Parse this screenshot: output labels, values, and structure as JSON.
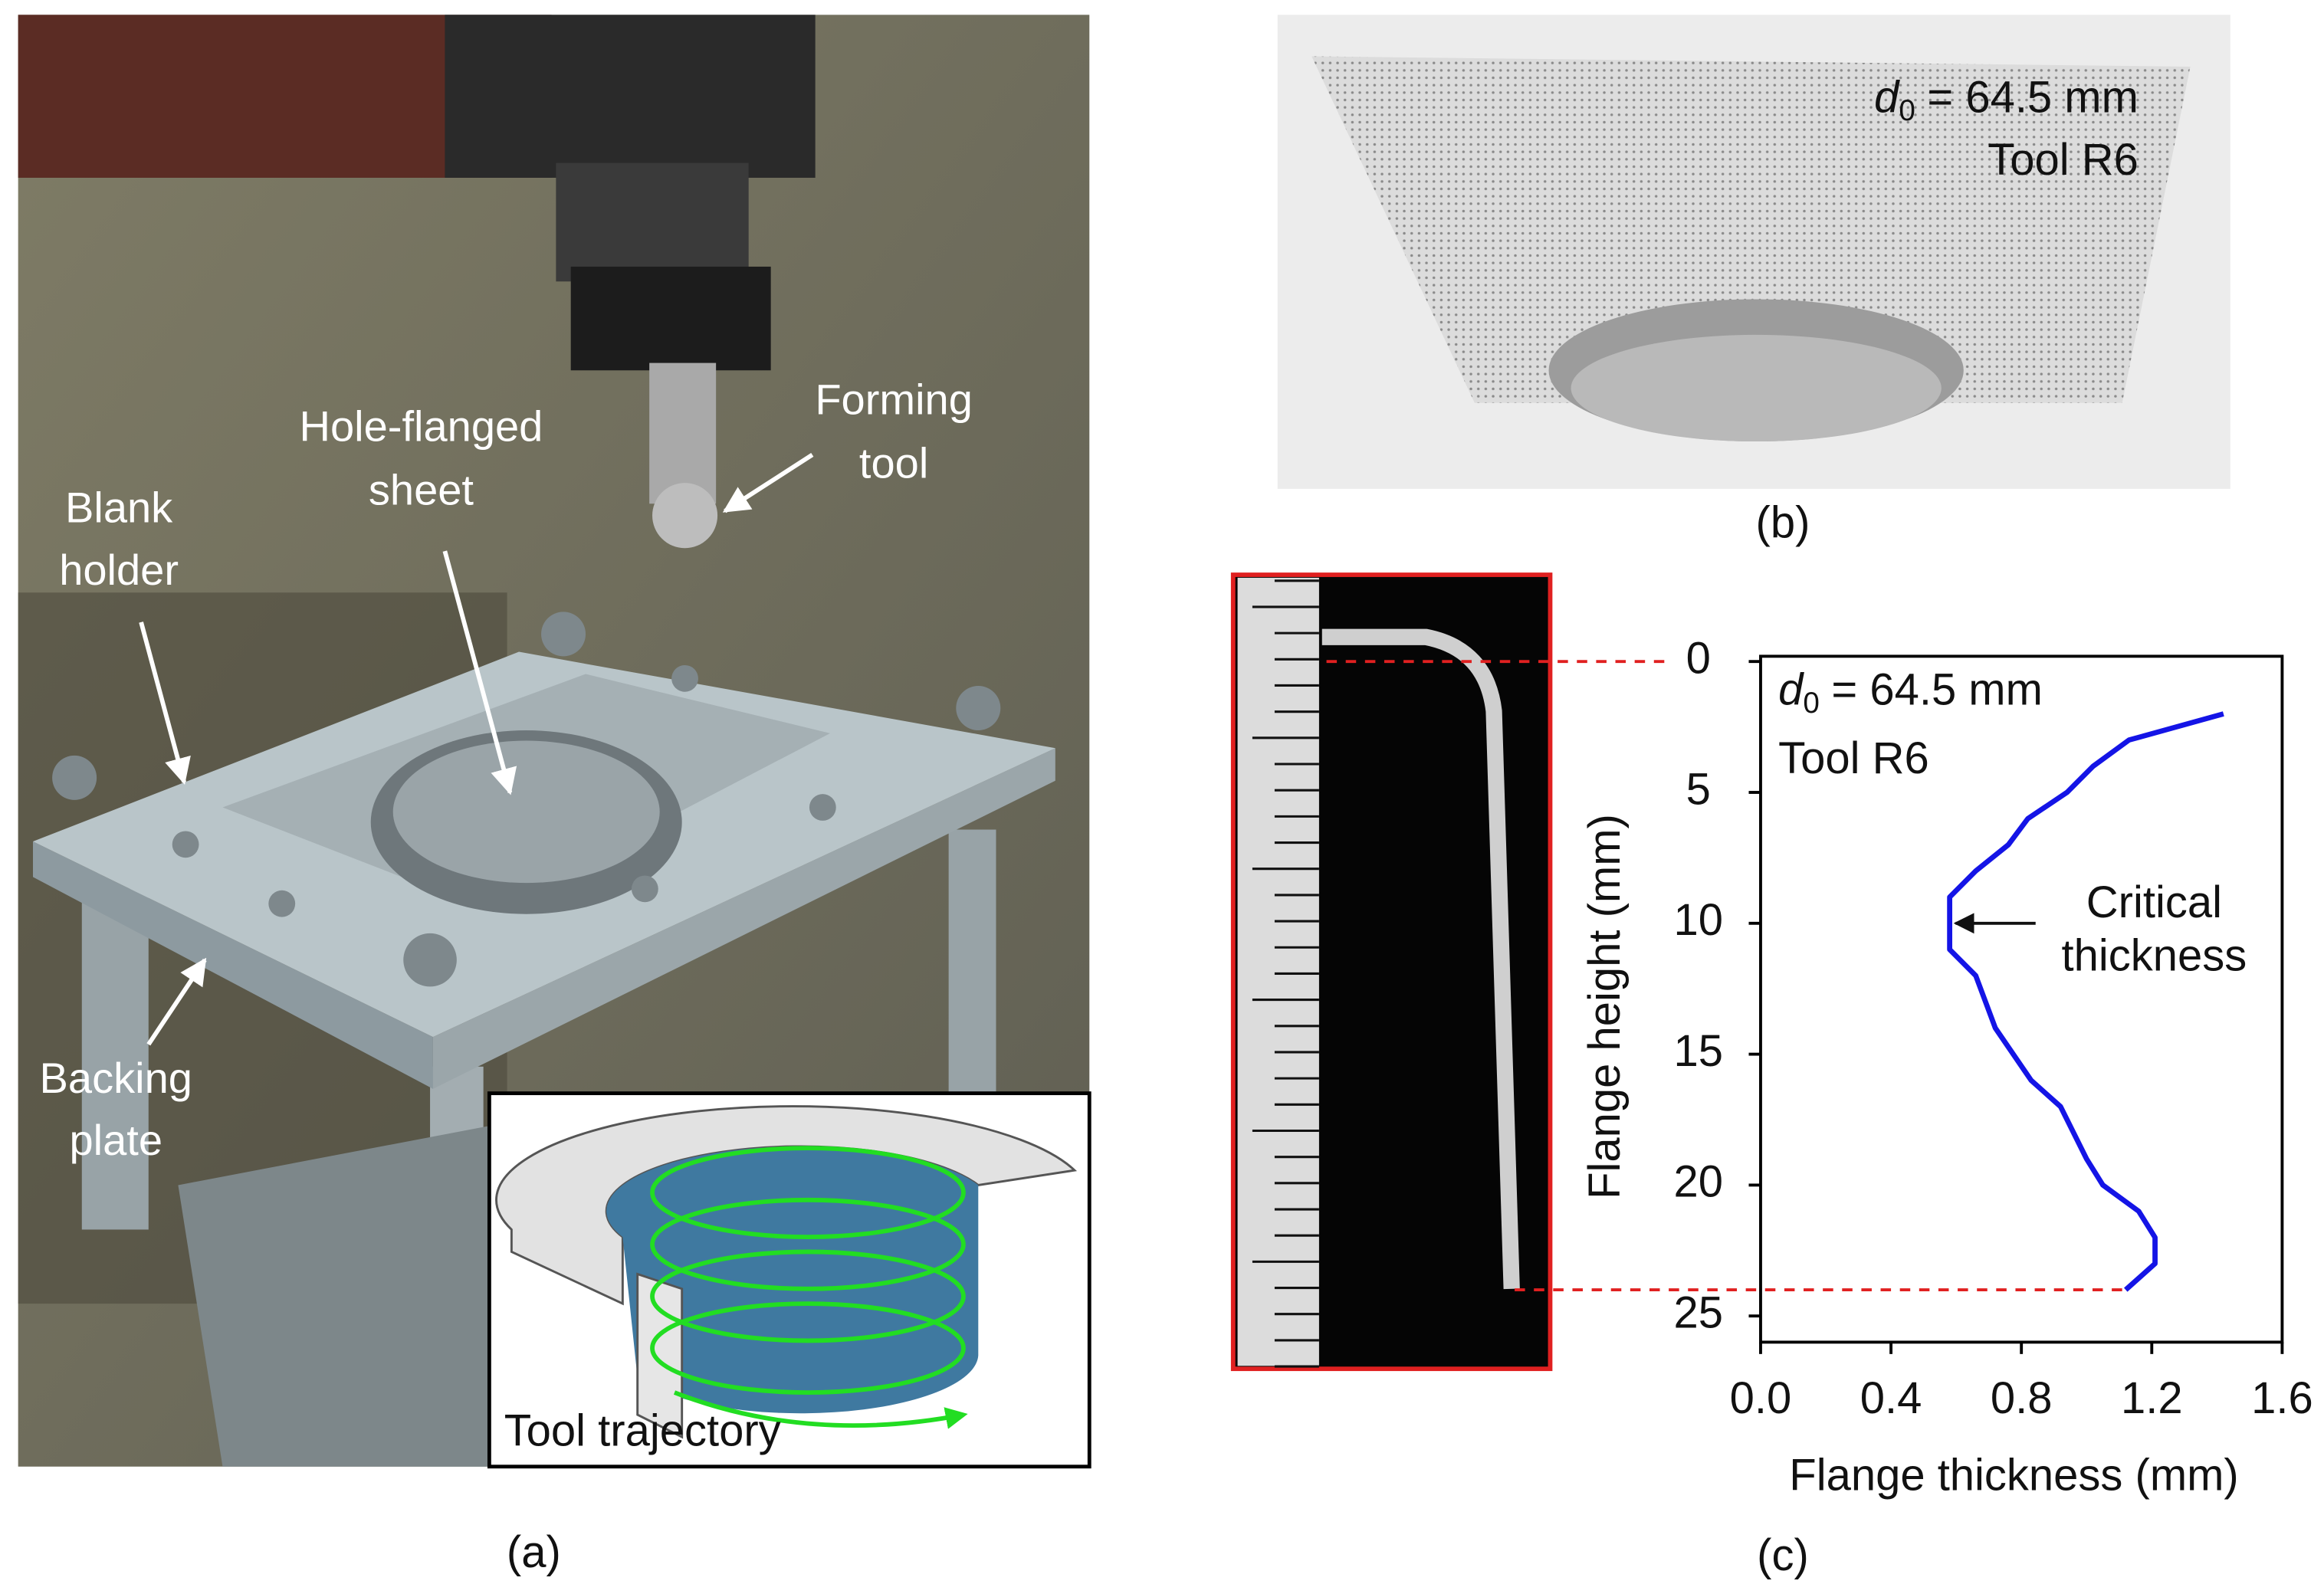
{
  "panel_a": {
    "label": "(a)",
    "callouts": [
      {
        "lines": [
          "Forming",
          "tool"
        ]
      },
      {
        "lines": [
          "Hole-flanged",
          "sheet"
        ]
      },
      {
        "lines": [
          "Blank",
          "holder"
        ]
      },
      {
        "lines": [
          "Backing",
          "plate"
        ]
      }
    ],
    "inset_caption": "Tool trajectory"
  },
  "panel_b": {
    "label": "(b)",
    "diameter": {
      "symbol": "d",
      "subscript": "0",
      "text": "= 64.5 mm"
    },
    "tool": "Tool R6"
  },
  "chart_data": {
    "type": "line",
    "panel_label": "(c)",
    "xlabel": "Flange thickness (mm)",
    "ylabel": "Flange height (mm)",
    "diameter": {
      "symbol": "d",
      "subscript": "0",
      "text": "= 64.5 mm"
    },
    "tool": "Tool R6",
    "x": [
      1.42,
      1.13,
      1.02,
      0.94,
      0.82,
      0.76,
      0.66,
      0.58,
      0.58,
      0.58,
      0.66,
      0.72,
      0.83,
      0.92,
      1.0,
      1.05,
      1.16,
      1.21,
      1.21,
      1.12
    ],
    "values": [
      2,
      3,
      4,
      5,
      6,
      7,
      8,
      9,
      10,
      11,
      12,
      14,
      16,
      17,
      19,
      20,
      21,
      22,
      23,
      24
    ],
    "color": "#1414e6",
    "xlim": [
      0,
      1.6
    ],
    "ylim": [
      26,
      -0.2
    ],
    "xticks": [
      {
        "value": 0,
        "label": "0.0"
      },
      0.4,
      0.8,
      1.2,
      1.6
    ],
    "yticks": [
      0,
      5,
      10,
      15,
      20,
      25
    ],
    "annotations": [
      {
        "lines": [
          "Critical",
          "thickness"
        ],
        "x": 0.58,
        "y": 10
      }
    ]
  }
}
